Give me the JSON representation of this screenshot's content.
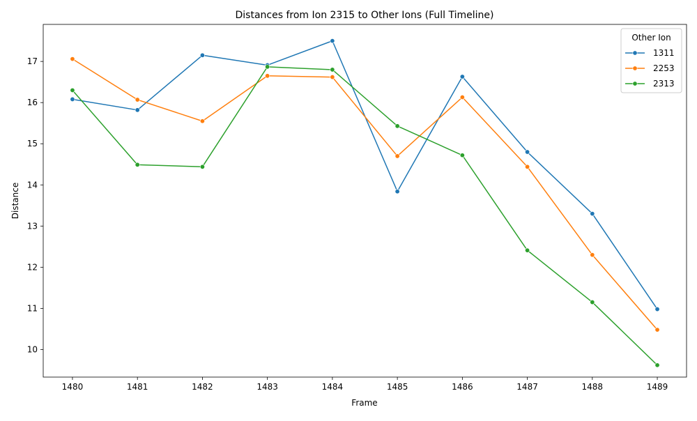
{
  "chart_data": {
    "type": "line",
    "title": "Distances from Ion 2315 to Other Ions (Full Timeline)",
    "xlabel": "Frame",
    "ylabel": "Distance",
    "x": [
      1480,
      1481,
      1482,
      1483,
      1484,
      1485,
      1486,
      1487,
      1488,
      1489
    ],
    "xlim": [
      1479.55,
      1489.45
    ],
    "ylim": [
      9.33,
      17.9
    ],
    "xticks": [
      1480,
      1481,
      1482,
      1483,
      1484,
      1485,
      1486,
      1487,
      1488,
      1489
    ],
    "yticks": [
      10,
      11,
      12,
      13,
      14,
      15,
      16,
      17
    ],
    "legend": {
      "title": "Other Ion",
      "placement": "top-right"
    },
    "grid": false,
    "series": [
      {
        "name": "1311",
        "color": "#1f77b4",
        "values": [
          16.08,
          15.82,
          17.15,
          16.91,
          17.5,
          13.84,
          16.63,
          14.8,
          13.3,
          10.98
        ]
      },
      {
        "name": "2253",
        "color": "#ff7f0e",
        "values": [
          17.06,
          16.07,
          15.55,
          16.65,
          16.62,
          14.7,
          16.13,
          14.44,
          12.3,
          10.48
        ]
      },
      {
        "name": "2313",
        "color": "#2ca02c",
        "values": [
          16.3,
          14.49,
          14.44,
          16.87,
          16.8,
          15.43,
          14.72,
          12.41,
          11.15,
          9.62
        ]
      }
    ]
  }
}
